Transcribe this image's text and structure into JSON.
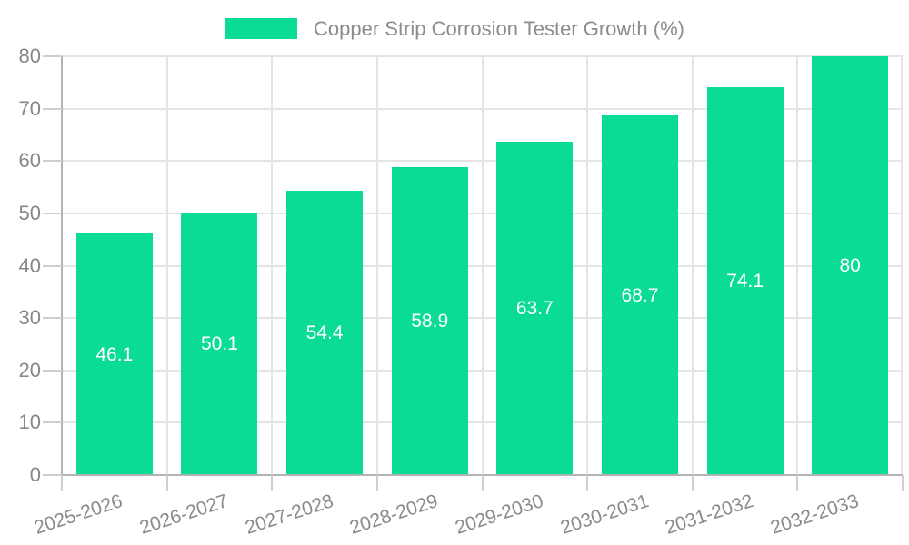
{
  "legend": {
    "label": "Copper Strip Corrosion Tester Growth (%)"
  },
  "chart_data": {
    "type": "bar",
    "title": "Copper Strip Corrosion Tester Growth (%)",
    "categories": [
      "2025-2026",
      "2026-2027",
      "2027-2028",
      "2028-2029",
      "2029-2030",
      "2030-2031",
      "2031-2032",
      "2032-2033"
    ],
    "values": [
      46.1,
      50.1,
      54.4,
      58.9,
      63.7,
      68.7,
      74.1,
      80
    ],
    "value_labels": [
      "46.1",
      "50.1",
      "54.4",
      "58.9",
      "63.7",
      "68.7",
      "74.1",
      "80"
    ],
    "series": [
      {
        "name": "Copper Strip Corrosion Tester Growth (%)",
        "values": [
          46.1,
          50.1,
          54.4,
          58.9,
          63.7,
          68.7,
          74.1,
          80
        ]
      }
    ],
    "xlabel": "",
    "ylabel": "",
    "ylim": [
      0,
      80
    ],
    "yticks": [
      0,
      10,
      20,
      30,
      40,
      50,
      60,
      70,
      80
    ],
    "grid": true,
    "legend_position": "top-center",
    "bar_color": "#0adc96",
    "value_label_color": "#ffffff",
    "axis_color": "#b3b3b3",
    "tick_label_color": "#878787"
  }
}
